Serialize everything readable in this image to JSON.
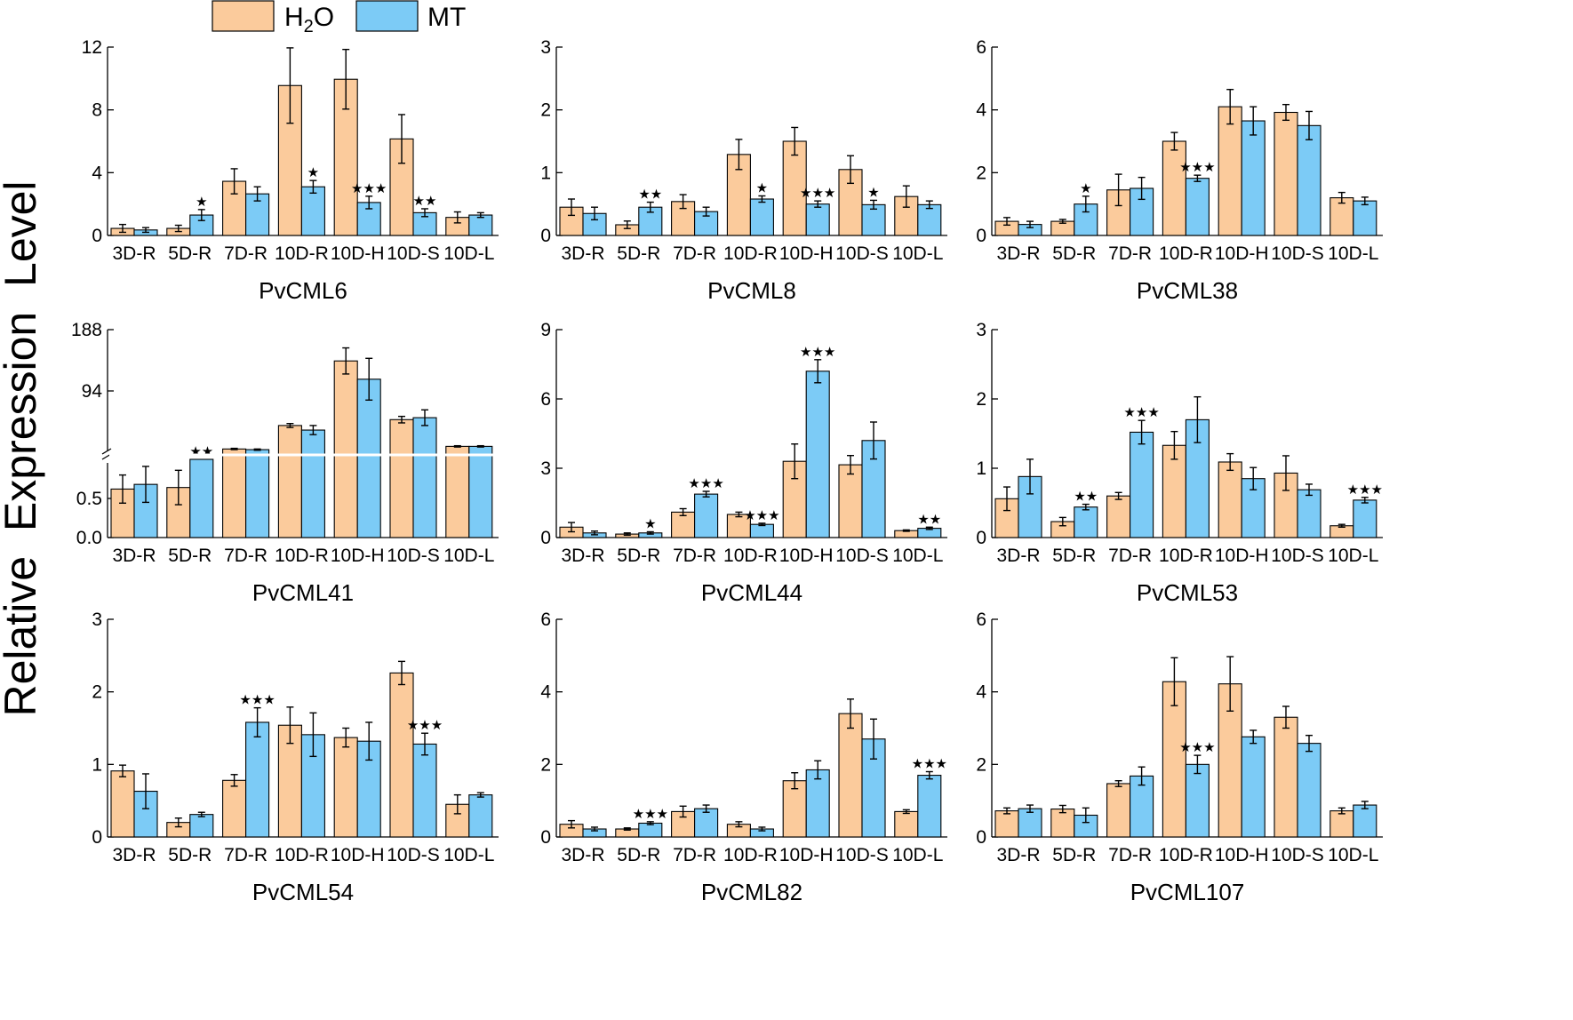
{
  "figure": {
    "y_axis_title": "Relative  Expression  Level",
    "legend": [
      {
        "label_main": "H",
        "label_sub": "2",
        "label_tail": "O",
        "color": "#FBCB9C"
      },
      {
        "label_main": "MT",
        "label_sub": "",
        "label_tail": "",
        "color": "#7CCBF6"
      }
    ],
    "star_glyph": "★"
  },
  "chart_data": [
    {
      "type": "bar",
      "title": "PvCML6",
      "categories": [
        "3D-R",
        "5D-R",
        "7D-R",
        "10D-R",
        "10D-H",
        "10D-S",
        "10D-L"
      ],
      "ylim": [
        0,
        12
      ],
      "yticks": [
        0,
        4,
        8,
        12
      ],
      "series": [
        {
          "name": "H2O",
          "values": [
            0.45,
            0.45,
            3.45,
            9.55,
            9.95,
            6.15,
            1.15
          ],
          "errors": [
            0.25,
            0.2,
            0.8,
            2.4,
            1.9,
            1.55,
            0.35
          ],
          "stars": [
            0,
            0,
            0,
            0,
            0,
            0,
            0
          ]
        },
        {
          "name": "MT",
          "values": [
            0.35,
            1.3,
            2.65,
            3.1,
            2.1,
            1.45,
            1.3
          ],
          "errors": [
            0.15,
            0.35,
            0.45,
            0.4,
            0.4,
            0.25,
            0.15
          ],
          "stars": [
            0,
            1,
            0,
            1,
            3,
            2,
            0
          ]
        }
      ]
    },
    {
      "type": "bar",
      "title": "PvCML8",
      "categories": [
        "3D-R",
        "5D-R",
        "7D-R",
        "10D-R",
        "10D-H",
        "10D-S",
        "10D-L"
      ],
      "ylim": [
        0,
        3
      ],
      "yticks": [
        0,
        1,
        2,
        3
      ],
      "series": [
        {
          "name": "H2O",
          "values": [
            0.45,
            0.17,
            0.54,
            1.29,
            1.5,
            1.05,
            0.62
          ],
          "errors": [
            0.13,
            0.06,
            0.11,
            0.24,
            0.22,
            0.22,
            0.17
          ],
          "stars": [
            0,
            0,
            0,
            0,
            0,
            0,
            0
          ]
        },
        {
          "name": "MT",
          "values": [
            0.35,
            0.45,
            0.38,
            0.58,
            0.5,
            0.49,
            0.49
          ],
          "errors": [
            0.1,
            0.08,
            0.07,
            0.05,
            0.05,
            0.07,
            0.06
          ],
          "stars": [
            0,
            2,
            0,
            1,
            3,
            1,
            0
          ]
        }
      ]
    },
    {
      "type": "bar",
      "title": "PvCML38",
      "categories": [
        "3D-R",
        "5D-R",
        "7D-R",
        "10D-R",
        "10D-H",
        "10D-S",
        "10D-L"
      ],
      "ylim": [
        0,
        6
      ],
      "yticks": [
        0,
        2,
        4,
        6
      ],
      "series": [
        {
          "name": "H2O",
          "values": [
            0.45,
            0.45,
            1.45,
            3.0,
            4.1,
            3.92,
            1.2
          ],
          "errors": [
            0.12,
            0.06,
            0.5,
            0.28,
            0.55,
            0.25,
            0.17
          ],
          "stars": [
            0,
            0,
            0,
            0,
            0,
            0,
            0
          ]
        },
        {
          "name": "MT",
          "values": [
            0.35,
            1.0,
            1.5,
            1.82,
            3.65,
            3.5,
            1.1
          ],
          "errors": [
            0.1,
            0.25,
            0.35,
            0.1,
            0.45,
            0.45,
            0.12
          ],
          "stars": [
            0,
            1,
            0,
            3,
            0,
            0,
            0
          ]
        }
      ]
    },
    {
      "type": "bar",
      "title": "PvCML41",
      "categories": [
        "3D-R",
        "5D-R",
        "7D-R",
        "10D-R",
        "10D-H",
        "10D-S",
        "10D-L"
      ],
      "ylim": [
        0,
        188
      ],
      "yticks": [
        0.0,
        0.5,
        94,
        188
      ],
      "ytick_labels": [
        "0.0",
        "0.5",
        "94",
        "188"
      ],
      "axis_break": true,
      "break_at": 1.0,
      "series": [
        {
          "name": "H2O",
          "values": [
            0.62,
            0.64,
            5.0,
            41.0,
            140.0,
            50.0,
            9.0
          ],
          "errors": [
            0.18,
            0.22,
            1.0,
            3.0,
            20.0,
            5.0,
            1.0
          ],
          "stars": [
            0,
            0,
            0,
            0,
            0,
            0,
            0
          ]
        },
        {
          "name": "MT",
          "values": [
            0.68,
            1.0,
            4.0,
            34.0,
            112.0,
            53.0,
            9.0
          ],
          "errors": [
            0.23,
            0.0,
            1.0,
            7.0,
            32.0,
            12.0,
            1.0
          ],
          "stars": [
            0,
            2,
            0,
            0,
            0,
            0,
            0
          ]
        }
      ]
    },
    {
      "type": "bar",
      "title": "PvCML44",
      "categories": [
        "3D-R",
        "5D-R",
        "7D-R",
        "10D-R",
        "10D-H",
        "10D-S",
        "10D-L"
      ],
      "ylim": [
        0,
        9
      ],
      "yticks": [
        0,
        3,
        6,
        9
      ],
      "series": [
        {
          "name": "H2O",
          "values": [
            0.45,
            0.15,
            1.1,
            1.0,
            3.3,
            3.15,
            0.3
          ],
          "errors": [
            0.2,
            0.05,
            0.15,
            0.1,
            0.75,
            0.4,
            0.03
          ],
          "stars": [
            0,
            0,
            0,
            0,
            0,
            0,
            0
          ]
        },
        {
          "name": "MT",
          "values": [
            0.2,
            0.2,
            1.88,
            0.57,
            7.2,
            4.2,
            0.4
          ],
          "errors": [
            0.08,
            0.05,
            0.12,
            0.05,
            0.5,
            0.8,
            0.05
          ],
          "stars": [
            0,
            1,
            3,
            3,
            3,
            0,
            2
          ]
        }
      ]
    },
    {
      "type": "bar",
      "title": "PvCML53",
      "categories": [
        "3D-R",
        "5D-R",
        "7D-R",
        "10D-R",
        "10D-H",
        "10D-S",
        "10D-L"
      ],
      "ylim": [
        0,
        3
      ],
      "yticks": [
        0,
        1,
        2,
        3
      ],
      "series": [
        {
          "name": "H2O",
          "values": [
            0.56,
            0.23,
            0.6,
            1.33,
            1.09,
            0.93,
            0.17
          ],
          "errors": [
            0.17,
            0.06,
            0.05,
            0.2,
            0.12,
            0.25,
            0.02
          ],
          "stars": [
            0,
            0,
            0,
            0,
            0,
            0,
            0
          ]
        },
        {
          "name": "MT",
          "values": [
            0.88,
            0.44,
            1.52,
            1.7,
            0.85,
            0.69,
            0.54
          ],
          "errors": [
            0.25,
            0.04,
            0.17,
            0.33,
            0.16,
            0.08,
            0.04
          ],
          "stars": [
            0,
            2,
            3,
            0,
            0,
            0,
            3
          ]
        }
      ]
    },
    {
      "type": "bar",
      "title": "PvCML54",
      "categories": [
        "3D-R",
        "5D-R",
        "7D-R",
        "10D-R",
        "10D-H",
        "10D-S",
        "10D-L"
      ],
      "ylim": [
        0,
        3
      ],
      "yticks": [
        0,
        1,
        2,
        3
      ],
      "series": [
        {
          "name": "H2O",
          "values": [
            0.91,
            0.2,
            0.78,
            1.54,
            1.37,
            2.26,
            0.45
          ],
          "errors": [
            0.08,
            0.06,
            0.08,
            0.25,
            0.13,
            0.16,
            0.13
          ],
          "stars": [
            0,
            0,
            0,
            0,
            0,
            0,
            0
          ]
        },
        {
          "name": "MT",
          "values": [
            0.63,
            0.31,
            1.58,
            1.41,
            1.32,
            1.28,
            0.58
          ],
          "errors": [
            0.24,
            0.03,
            0.2,
            0.3,
            0.26,
            0.15,
            0.03
          ],
          "stars": [
            0,
            0,
            3,
            0,
            0,
            3,
            0
          ]
        }
      ]
    },
    {
      "type": "bar",
      "title": "PvCML82",
      "categories": [
        "3D-R",
        "5D-R",
        "7D-R",
        "10D-R",
        "10D-H",
        "10D-S",
        "10D-L"
      ],
      "ylim": [
        0,
        6
      ],
      "yticks": [
        0,
        2,
        4,
        6
      ],
      "series": [
        {
          "name": "H2O",
          "values": [
            0.35,
            0.22,
            0.7,
            0.35,
            1.55,
            3.4,
            0.7
          ],
          "errors": [
            0.1,
            0.03,
            0.15,
            0.07,
            0.22,
            0.4,
            0.05
          ],
          "stars": [
            0,
            0,
            0,
            0,
            0,
            0,
            0
          ]
        },
        {
          "name": "MT",
          "values": [
            0.22,
            0.38,
            0.78,
            0.22,
            1.85,
            2.7,
            1.7
          ],
          "errors": [
            0.05,
            0.04,
            0.1,
            0.05,
            0.25,
            0.55,
            0.1
          ],
          "stars": [
            0,
            3,
            0,
            0,
            0,
            0,
            3
          ]
        }
      ]
    },
    {
      "type": "bar",
      "title": "PvCML107",
      "categories": [
        "3D-R",
        "5D-R",
        "7D-R",
        "10D-R",
        "10D-H",
        "10D-S",
        "10D-L"
      ],
      "ylim": [
        0,
        6
      ],
      "yticks": [
        0,
        2,
        4,
        6
      ],
      "series": [
        {
          "name": "H2O",
          "values": [
            0.72,
            0.77,
            1.47,
            4.28,
            4.22,
            3.3,
            0.72
          ],
          "errors": [
            0.08,
            0.1,
            0.08,
            0.66,
            0.75,
            0.3,
            0.08
          ],
          "stars": [
            0,
            0,
            0,
            0,
            0,
            0,
            0
          ]
        },
        {
          "name": "MT",
          "values": [
            0.78,
            0.6,
            1.68,
            2.0,
            2.76,
            2.58,
            0.88
          ],
          "errors": [
            0.1,
            0.2,
            0.25,
            0.25,
            0.18,
            0.22,
            0.1
          ],
          "stars": [
            0,
            0,
            0,
            3,
            0,
            0,
            0
          ]
        }
      ]
    }
  ]
}
